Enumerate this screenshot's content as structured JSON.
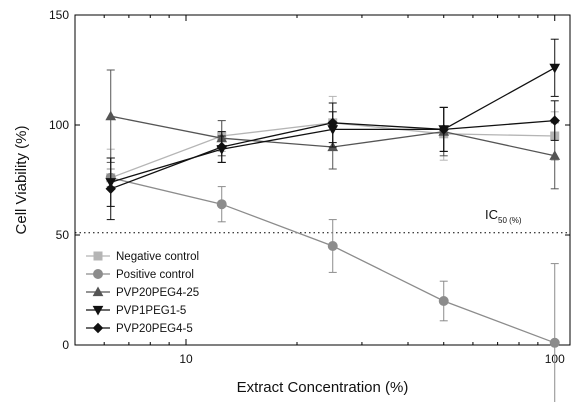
{
  "chart_data": {
    "type": "line",
    "xlabel": "Extract Concentration (%)",
    "ylabel": "Cell Viability (%)",
    "xscale": "log",
    "xlim": [
      5,
      110
    ],
    "ylim": [
      0,
      150
    ],
    "xticks": [
      {
        "value": 10,
        "label": "10"
      },
      {
        "value": 100,
        "label": "100"
      }
    ],
    "yticks": [
      {
        "value": 0,
        "label": "0"
      },
      {
        "value": 50,
        "label": "50"
      },
      {
        "value": 100,
        "label": "100"
      },
      {
        "value": 150,
        "label": "150"
      }
    ],
    "x": [
      6.25,
      12.5,
      25,
      50,
      100
    ],
    "series": [
      {
        "name": "Negative control",
        "color": "#b5b5b5",
        "marker": "square",
        "values": [
          76,
          95,
          101,
          96,
          95
        ],
        "errors": [
          13,
          7,
          12,
          12,
          11
        ]
      },
      {
        "name": "Positive control",
        "color": "#8c8c8c",
        "marker": "circle",
        "values": [
          76,
          64,
          45,
          20,
          1
        ],
        "errors": [
          4,
          8,
          12,
          9,
          36
        ]
      },
      {
        "name": "PVP20PEG4-25",
        "color": "#555555",
        "marker": "triangle-up",
        "values": [
          104,
          94,
          90,
          97,
          86
        ],
        "errors": [
          21,
          8,
          10,
          11,
          15
        ]
      },
      {
        "name": "PVP1PEG1-5",
        "color": "#111111",
        "marker": "triangle-down",
        "values": [
          74,
          89,
          98,
          98,
          126
        ],
        "errors": [
          11,
          6,
          8,
          10,
          13
        ]
      },
      {
        "name": "PVP20PEG4-5",
        "color": "#111111",
        "marker": "diamond",
        "values": [
          71,
          90,
          101,
          98,
          102
        ],
        "errors": [
          14,
          7,
          9,
          10,
          9
        ]
      }
    ],
    "reference_line": {
      "y": 51,
      "label": "IC",
      "label_sub": "50 (%)",
      "style": "dotted"
    },
    "legend_position": "bottom-left"
  }
}
